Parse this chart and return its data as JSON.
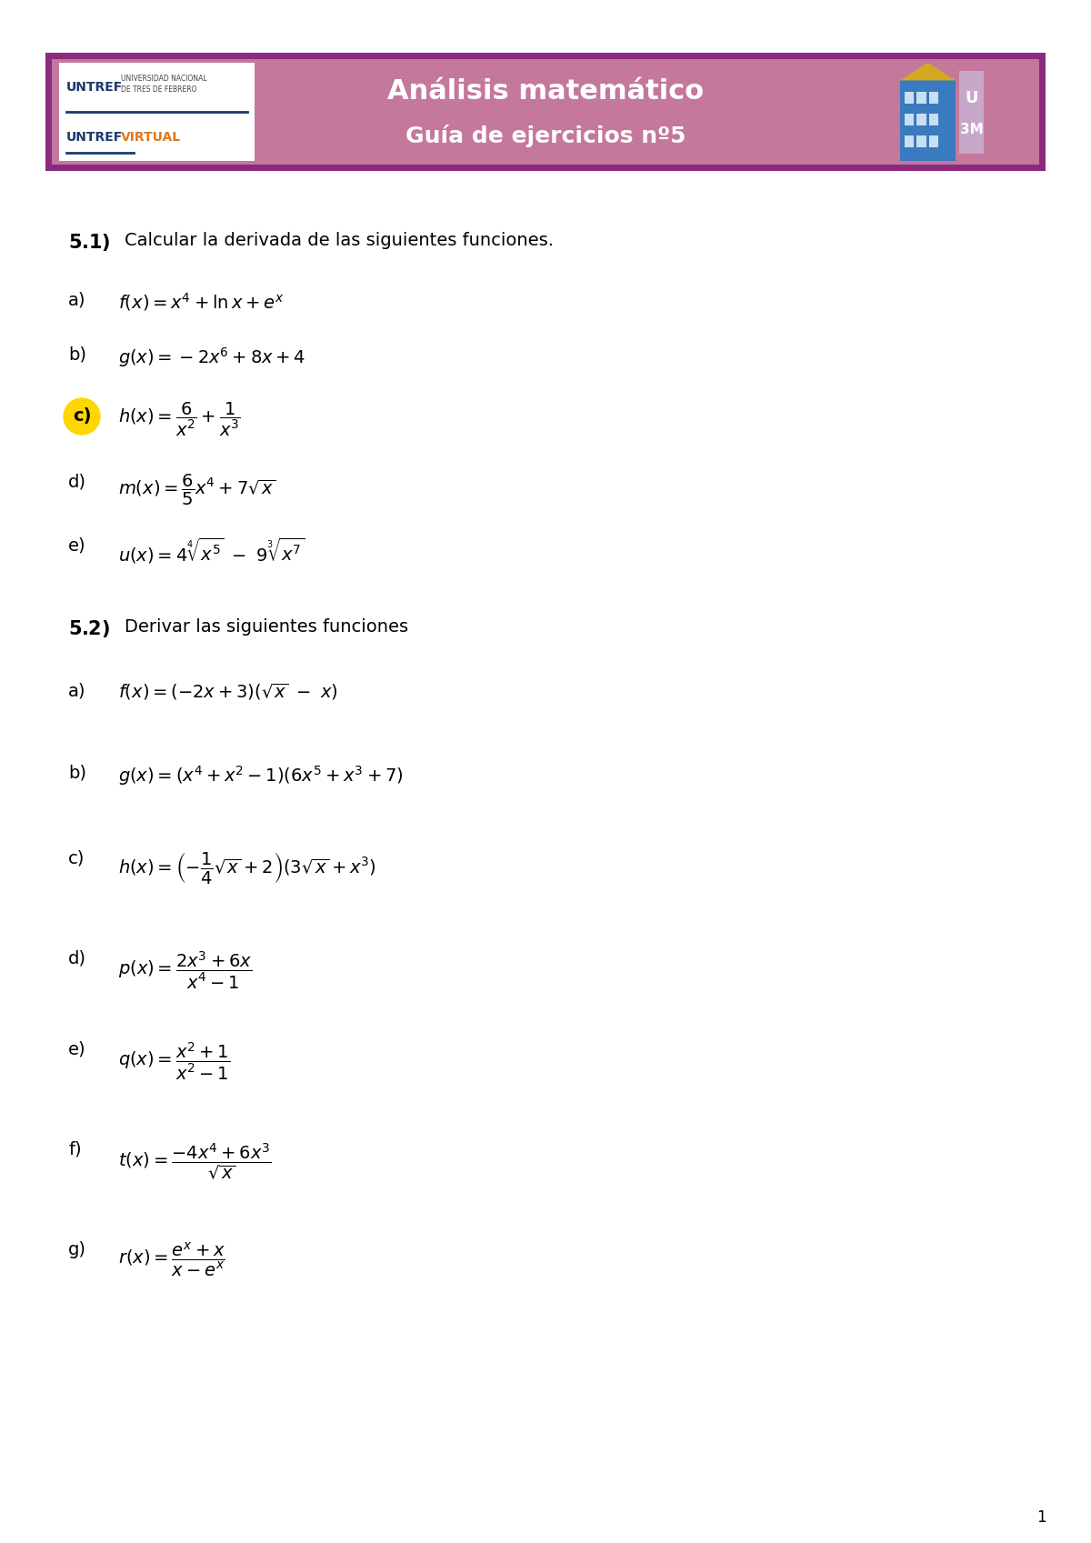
{
  "title1": "Análisis matemático",
  "title2": "Guía de ejercicios nº5",
  "header_bg": "#c4789b",
  "header_border": "#8b2a7e",
  "page_bg": "#ffffff",
  "text_color": "#000000",
  "section_51_label": "5.1)",
  "section_51_text": "Calcular la derivada de las siguientes funciones.",
  "section_52_label": "5.2)",
  "section_52_text": "Derivar las siguientes funciones",
  "items_51": [
    [
      "a)",
      "$f\\left(x\\right)=x^{4}+\\ln x+e^{x}$"
    ],
    [
      "b)",
      "$g\\left(x\\right)=-2x^{6}+8x+4$"
    ],
    [
      "c)",
      "$h\\left(x\\right)=\\dfrac{6}{x^{2}}+\\dfrac{1}{x^{3}}$"
    ],
    [
      "d)",
      "$m\\left(x\\right)=\\dfrac{6}{5}x^{4}+7\\sqrt{x}$"
    ],
    [
      "e)",
      "$u\\left(x\\right)=4\\sqrt[4]{x^{5}}\\ -\\ 9\\sqrt[3]{x^{7}}$"
    ]
  ],
  "items_52": [
    [
      "a)",
      "$f\\left(x\\right)=\\left(-2x+3\\right)\\left(\\sqrt{x}\\ -\\ x\\right)$"
    ],
    [
      "b)",
      "$g\\left(x\\right)=\\left(x^{4}+x^{2}-1\\right)\\left(6x^{5}+x^{3}+7\\right)$"
    ],
    [
      "c)",
      "$h\\left(x\\right)=\\left(-\\dfrac{1}{4}\\sqrt{x}+2\\right)\\left(3\\sqrt{x}+x^{3}\\right)$"
    ],
    [
      "d)",
      "$p\\left(x\\right)=\\dfrac{2x^{3}+6x}{x^{4}-1}$"
    ],
    [
      "e)",
      "$q\\left(x\\right)=\\dfrac{x^{2}+1}{x^{2}-1}$"
    ],
    [
      "f)",
      "$t\\left(x\\right)=\\dfrac{-4x^{4}+6x^{3}}{\\sqrt{x}}$"
    ],
    [
      "g)",
      "$r\\left(x\\right)=\\dfrac{e^{x}+x}{x-e^{x}}$"
    ]
  ],
  "highlight_c_color": "#FFD700",
  "page_number": "1",
  "label_fontsize": 14,
  "formula_fontsize": 14,
  "section_header_fontsize": 15
}
